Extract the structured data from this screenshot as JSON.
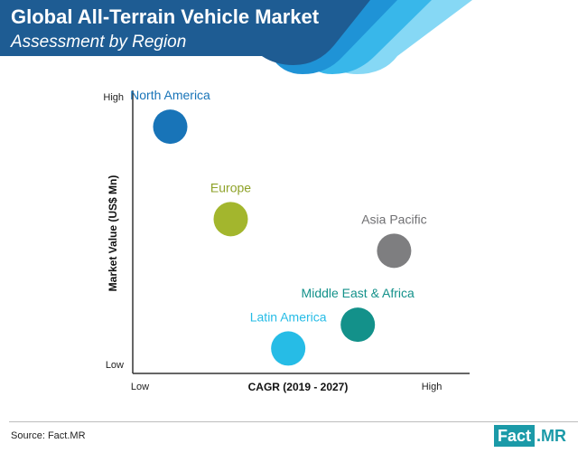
{
  "header": {
    "title": "Global All-Terrain Vehicle Market",
    "subtitle": "Assessment by Region",
    "colors": [
      "#1e5c93",
      "#1f93d6",
      "#38b7ea",
      "#86d8f5"
    ]
  },
  "chart_data": {
    "type": "scatter",
    "title": "Global All-Terrain Vehicle Market",
    "subtitle": "Assessment by Region",
    "xlabel": "CAGR (2019 - 2027)",
    "ylabel": "Market Value (US$ Mn)",
    "x_ticks": [
      "Low",
      "High"
    ],
    "y_ticks": [
      "Low",
      "High"
    ],
    "xlim": [
      0,
      1
    ],
    "ylim": [
      0,
      1
    ],
    "grid": false,
    "points": [
      {
        "name": "North America",
        "x": 0.1,
        "y": 0.89,
        "color": "#1874b8",
        "label_color": "#1874b8"
      },
      {
        "name": "Europe",
        "x": 0.3,
        "y": 0.54,
        "color": "#a3b62d",
        "label_color": "#8ea228"
      },
      {
        "name": "Asia Pacific",
        "x": 0.84,
        "y": 0.42,
        "color": "#7e7e80",
        "label_color": "#6f6f72"
      },
      {
        "name": "Middle East & Africa",
        "x": 0.72,
        "y": 0.14,
        "color": "#13918a",
        "label_color": "#13918a"
      },
      {
        "name": "Latin America",
        "x": 0.49,
        "y": 0.05,
        "color": "#26bce6",
        "label_color": "#26bce6"
      }
    ]
  },
  "footer": {
    "source": "Source: Fact.MR",
    "logo_left": "Fact",
    "logo_right": ".MR",
    "logo_color": "#1b9aa8"
  }
}
